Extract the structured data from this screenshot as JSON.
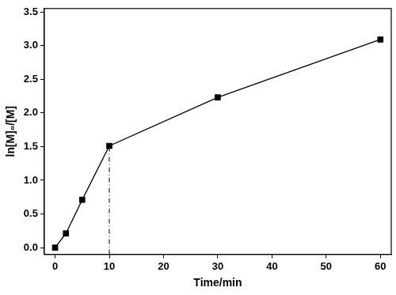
{
  "chart_data": {
    "type": "line",
    "x_label": "Time/min",
    "y_label": "ln[M]₀/[M]",
    "xlim": [
      -2,
      62
    ],
    "xticks": [
      0,
      10,
      20,
      30,
      40,
      50,
      60
    ],
    "ylim": [
      -0.1,
      3.55
    ],
    "yticks": [
      {
        "value": 0,
        "label": "0.0"
      },
      0.5,
      {
        "value": 1,
        "label": "1.0"
      },
      1.5,
      {
        "value": 2,
        "label": "2.0"
      },
      2.5,
      {
        "value": 3,
        "label": "3.0"
      },
      3.5
    ],
    "grid": false,
    "series": [
      {
        "x": [
          0,
          2,
          5,
          10,
          30,
          60
        ],
        "values": [
          0,
          0.21,
          0.71,
          1.51,
          2.23,
          3.09
        ],
        "color": "#000000",
        "marker": "square",
        "line_style": "solid"
      },
      {
        "x": [
          10,
          10
        ],
        "values": [
          -0.1,
          1.51
        ],
        "color": "#000000",
        "marker": "none",
        "line_style": "dashdot"
      }
    ]
  }
}
